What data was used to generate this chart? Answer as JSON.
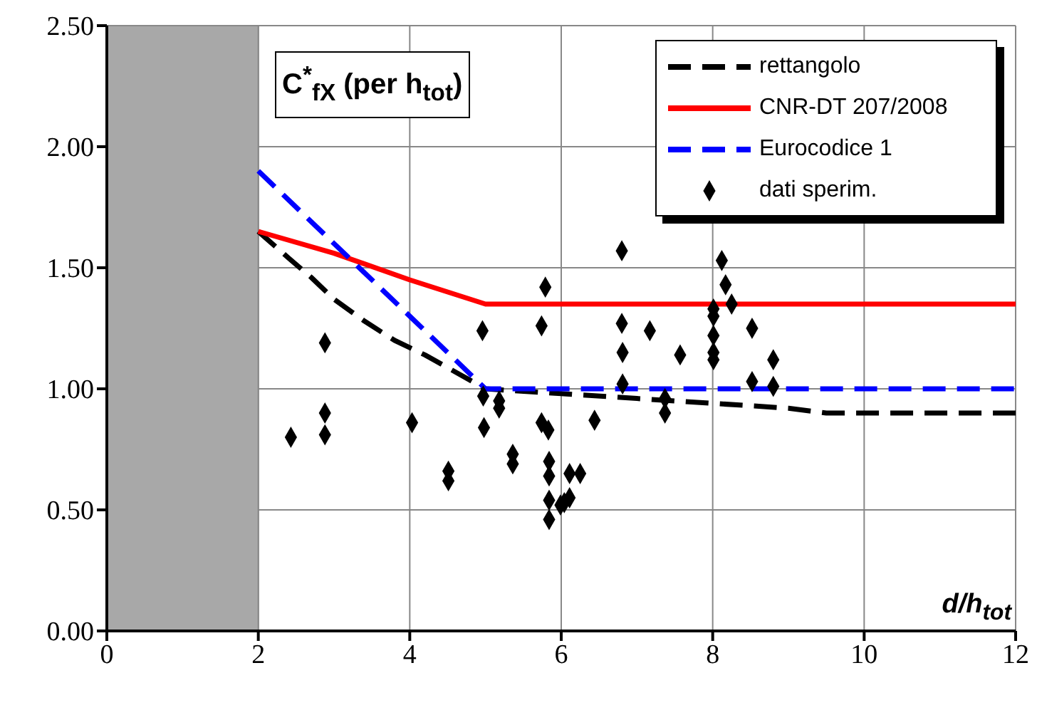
{
  "chart_data": {
    "type": "line",
    "title": "C$^{*}$$_{fX}$ (per h$_{tot}$)",
    "xlabel": "d/h$_{tot}$",
    "xlim": [
      0,
      12
    ],
    "xticks": [
      0,
      2,
      4,
      6,
      8,
      10,
      12
    ],
    "ylim": [
      0,
      2.5
    ],
    "yticks": [
      {
        "value": 0,
        "label": "0.00"
      },
      {
        "value": 0.5,
        "label": "0.50"
      },
      {
        "value": 1,
        "label": "1.00"
      },
      {
        "value": 1.5,
        "label": "1.50"
      },
      {
        "value": 2,
        "label": "2.00"
      },
      {
        "value": 2.5,
        "label": "2.50"
      }
    ],
    "grid": true,
    "legend": "top right",
    "bands": [
      {
        "axis": "x",
        "from": 0,
        "to": 2,
        "color": "#a8a8a8"
      }
    ],
    "series": [
      {
        "name": "rettangolo",
        "type": "line",
        "color": "#000000",
        "line_style": "dashed",
        "marker": "none",
        "x": [
          2,
          2.4,
          2.7,
          3,
          3.4,
          3.8,
          4.2,
          4.6,
          5,
          6,
          7,
          8,
          9,
          9.5,
          12
        ],
        "values": [
          1.65,
          1.54,
          1.46,
          1.37,
          1.28,
          1.2,
          1.14,
          1.07,
          1.0,
          0.98,
          0.96,
          0.94,
          0.92,
          0.9,
          0.9
        ]
      },
      {
        "name": "CNR-DT 207/2008",
        "type": "line",
        "color": "#ff0000",
        "line_style": "solid",
        "marker": "none",
        "x": [
          2,
          3,
          4,
          4.5,
          5,
          12
        ],
        "values": [
          1.65,
          1.56,
          1.45,
          1.4,
          1.35,
          1.35
        ]
      },
      {
        "name": "Eurocodice 1",
        "type": "line",
        "color": "#0000ff",
        "line_style": "dashed",
        "marker": "none",
        "x": [
          2,
          5,
          12
        ],
        "values": [
          1.9,
          1.0,
          1.0
        ]
      },
      {
        "name": "dati sperim.",
        "type": "scatter",
        "color": "#000000",
        "marker": "diamond",
        "x": [
          2.43,
          2.88,
          2.88,
          2.88,
          4.03,
          4.51,
          4.51,
          4.96,
          4.97,
          4.98,
          5.18,
          5.18,
          5.36,
          5.36,
          5.74,
          5.79,
          5.74,
          5.83,
          5.84,
          5.84,
          5.84,
          5.84,
          5.99,
          6.04,
          6.11,
          6.11,
          6.25,
          6.44,
          6.8,
          6.8,
          6.81,
          6.81,
          7.17,
          7.37,
          7.37,
          7.57,
          8.01,
          8.01,
          8.01,
          8.01,
          8.01,
          8.12,
          8.17,
          8.25,
          8.52,
          8.52,
          8.8,
          8.8
        ],
        "values": [
          0.8,
          1.19,
          0.9,
          0.81,
          0.86,
          0.66,
          0.62,
          1.24,
          0.97,
          0.84,
          0.95,
          0.92,
          0.73,
          0.69,
          1.26,
          1.42,
          0.86,
          0.83,
          0.7,
          0.64,
          0.54,
          0.46,
          0.52,
          0.53,
          0.65,
          0.55,
          0.65,
          0.87,
          1.57,
          1.27,
          1.15,
          1.02,
          1.24,
          0.96,
          0.9,
          1.14,
          1.33,
          1.3,
          1.22,
          1.15,
          1.12,
          1.53,
          1.43,
          1.35,
          1.25,
          1.03,
          1.12,
          1.01
        ]
      }
    ]
  }
}
